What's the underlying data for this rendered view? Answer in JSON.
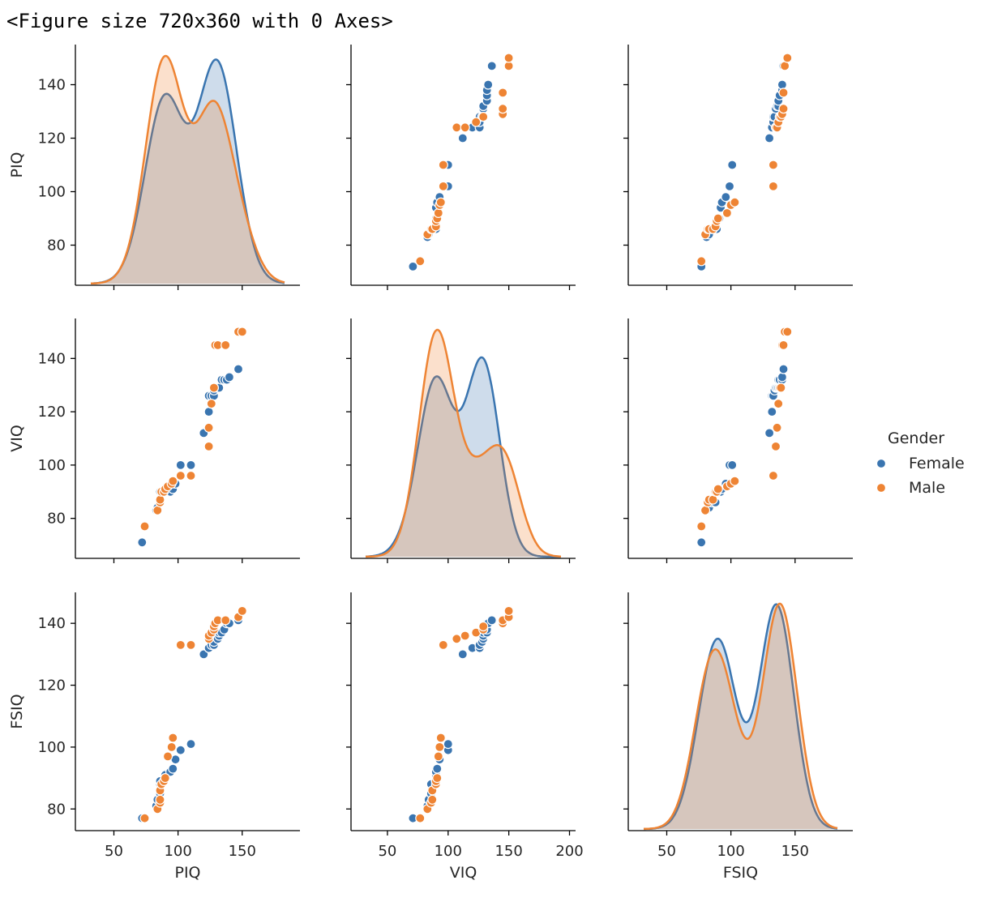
{
  "output_header": "<Figure size 720x360 with 0 Axes>",
  "colors": {
    "Female": "#3a75b0",
    "Male": "#ee8434",
    "axis": "#000000",
    "text": "#262626"
  },
  "chart_data": {
    "type": "scatter",
    "variables": [
      "PIQ",
      "VIQ",
      "FSIQ"
    ],
    "hue": "Gender",
    "legend": {
      "title": "Gender",
      "entries": [
        "Female",
        "Male"
      ],
      "placement": "right"
    },
    "grid": false,
    "diagonal_type": "kde",
    "axes": {
      "PIQ": {
        "range": [
          20,
          195
        ],
        "ticks": [
          50,
          100,
          150
        ],
        "row_range": [
          65,
          155
        ],
        "row_ticks": [
          80,
          100,
          120,
          140
        ]
      },
      "VIQ": {
        "range": [
          20,
          205
        ],
        "ticks": [
          50,
          100,
          150,
          200
        ],
        "row_range": [
          65,
          155
        ],
        "row_ticks": [
          80,
          100,
          120,
          140
        ]
      },
      "FSIQ": {
        "range": [
          20,
          195
        ],
        "ticks": [
          50,
          100,
          150
        ],
        "row_range": [
          73,
          150
        ],
        "row_ticks": [
          80,
          100,
          120,
          140
        ]
      }
    },
    "series": [
      {
        "name": "Female",
        "PIQ": [
          72,
          83,
          84,
          86,
          86,
          86,
          89,
          90,
          94,
          96,
          98,
          102,
          110,
          120,
          124,
          124,
          126,
          128,
          128,
          131,
          132,
          132,
          134,
          136,
          138,
          140,
          147
        ],
        "VIQ": [
          71,
          83,
          84,
          86,
          86,
          90,
          90,
          90,
          90,
          91,
          93,
          100,
          100,
          112,
          120,
          126,
          126,
          126,
          128,
          129,
          129,
          129,
          132,
          132,
          132,
          133,
          136
        ],
        "FSIQ": [
          77,
          81,
          83,
          85,
          88,
          89,
          89,
          91,
          92,
          93,
          96,
          99,
          101,
          130,
          132,
          132,
          133,
          133,
          134,
          135,
          136,
          137,
          137,
          138,
          140,
          140,
          141
        ]
      },
      {
        "name": "Male",
        "PIQ": [
          74,
          84,
          86,
          86,
          86,
          87,
          89,
          90,
          92,
          95,
          96,
          102,
          110,
          124,
          124,
          126,
          128,
          128,
          129,
          131,
          137,
          147,
          150
        ],
        "VIQ": [
          77,
          83,
          86,
          87,
          87,
          90,
          90,
          91,
          92,
          93,
          94,
          96,
          96,
          107,
          114,
          123,
          129,
          129,
          145,
          145,
          145,
          150,
          150
        ],
        "FSIQ": [
          77,
          80,
          82,
          83,
          86,
          88,
          89,
          90,
          97,
          100,
          103,
          133,
          133,
          135,
          136,
          137,
          138,
          139,
          140,
          141,
          141,
          142,
          144
        ]
      }
    ],
    "kde_bandwidth": 13
  }
}
